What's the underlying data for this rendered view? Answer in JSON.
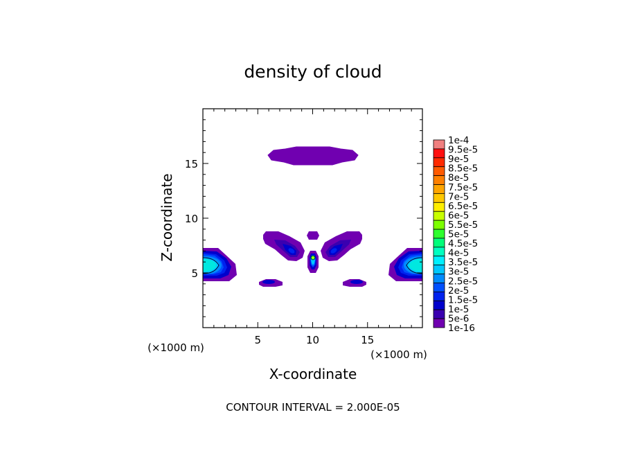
{
  "chart_data": {
    "type": "heatmap",
    "title": "density of cloud",
    "xlabel": "X-coordinate",
    "ylabel": "Z-coordinate",
    "x_unit": "(×1000 m)",
    "z_unit": "(×1000 m)",
    "xlim": [
      0,
      20
    ],
    "ylim": [
      0,
      20
    ],
    "x_ticks": [
      5,
      10,
      15
    ],
    "y_ticks": [
      5,
      10,
      15
    ],
    "grid": false,
    "footer": "CONTOUR INTERVAL = 2.000E-05",
    "colorbar": {
      "placement": "right",
      "labels": [
        "1e-4",
        "9.5e-5",
        "9e-5",
        "8.5e-5",
        "8e-5",
        "7.5e-5",
        "7e-5",
        "6.5e-5",
        "6e-5",
        "5.5e-5",
        "5e-5",
        "4.5e-5",
        "4e-5",
        "3.5e-5",
        "3e-5",
        "2.5e-5",
        "2e-5",
        "1.5e-5",
        "1e-5",
        "5e-6",
        "1e-16"
      ],
      "colors": [
        "#f08080",
        "#ff1010",
        "#ff2a00",
        "#ff5a00",
        "#ff8000",
        "#ffa500",
        "#ffc800",
        "#ffee00",
        "#c8ff00",
        "#7cff00",
        "#2eff2e",
        "#00ff7a",
        "#00ffc0",
        "#00f0ff",
        "#00c8ff",
        "#008cff",
        "#0050ff",
        "#0022ee",
        "#0000cc",
        "#3a00b0",
        "#7000b0"
      ]
    },
    "regions": [
      {
        "name": "upper-cloud-band",
        "x_range": [
          5.9,
          14.1
        ],
        "z_range": [
          14.9,
          16.4
        ],
        "max": 5e-06
      },
      {
        "name": "left-edge-cloud",
        "x_range": [
          0,
          3.0
        ],
        "z_range": [
          4.3,
          7.2
        ],
        "max": 4e-05
      },
      {
        "name": "right-edge-cloud",
        "x_range": [
          17.0,
          20
        ],
        "z_range": [
          4.3,
          7.2
        ],
        "max": 4e-05
      },
      {
        "name": "left-diagonal-cloud",
        "x_range": [
          5.4,
          9.2
        ],
        "z_range": [
          6.2,
          8.8
        ],
        "max": 1.5e-05
      },
      {
        "name": "right-diagonal-cloud",
        "x_range": [
          10.8,
          14.6
        ],
        "z_range": [
          6.2,
          8.8
        ],
        "max": 1.5e-05
      },
      {
        "name": "center-small-cloud",
        "x_range": [
          9.4,
          10.6
        ],
        "z_range": [
          7.8,
          8.8
        ],
        "max": 5e-06
      },
      {
        "name": "center-core",
        "x_range": [
          9.5,
          10.5
        ],
        "z_range": [
          5.0,
          7.0
        ],
        "max": 5.5e-05
      },
      {
        "name": "lower-left-cloud",
        "x_range": [
          5.1,
          7.3
        ],
        "z_range": [
          3.7,
          4.3
        ],
        "max": 5e-06
      },
      {
        "name": "lower-right-cloud",
        "x_range": [
          12.7,
          14.9
        ],
        "z_range": [
          3.7,
          4.3
        ],
        "max": 5e-06
      }
    ]
  }
}
